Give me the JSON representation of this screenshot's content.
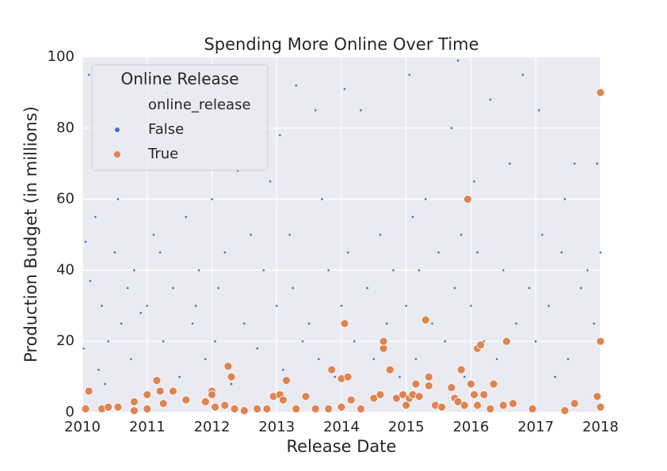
{
  "chart_data": {
    "type": "scatter",
    "title": "Spending More Online Over Time",
    "x_label": "Release Date",
    "y_label": "Production Budget (in millions)",
    "legend_title": "Online Release",
    "legend_subtitle": "online_release",
    "legend": "upper left",
    "xlim": [
      2010,
      2018
    ],
    "xticks": [
      2010,
      2011,
      2012,
      2013,
      2014,
      2015,
      2016,
      2017,
      2018
    ],
    "ylim": [
      0,
      100
    ],
    "yticks": [
      0,
      20,
      40,
      60,
      80,
      100
    ],
    "grid": true,
    "series": [
      {
        "name": "False",
        "color": "#4c72b0",
        "x": [
          2010.02,
          2010.05,
          2010.1,
          2010.12,
          2010.2,
          2010.25,
          2010.3,
          2010.35,
          2010.4,
          2010.5,
          2010.55,
          2010.6,
          2010.7,
          2010.75,
          2010.8,
          2010.9,
          2010.95,
          2011.0,
          2011.05,
          2011.1,
          2011.2,
          2011.25,
          2011.3,
          2011.4,
          2011.5,
          2011.6,
          2011.7,
          2011.75,
          2011.8,
          2011.9,
          2012.0,
          2012.05,
          2012.1,
          2012.2,
          2012.3,
          2012.4,
          2012.5,
          2012.6,
          2012.7,
          2012.8,
          2012.9,
          2013.0,
          2013.05,
          2013.1,
          2013.2,
          2013.25,
          2013.3,
          2013.4,
          2013.5,
          2013.6,
          2013.65,
          2013.7,
          2013.8,
          2013.9,
          2014.0,
          2014.05,
          2014.1,
          2014.2,
          2014.3,
          2014.4,
          2014.5,
          2014.6,
          2014.7,
          2014.8,
          2014.9,
          2015.0,
          2015.05,
          2015.1,
          2015.15,
          2015.2,
          2015.3,
          2015.4,
          2015.5,
          2015.6,
          2015.7,
          2015.75,
          2015.8,
          2015.85,
          2015.9,
          2016.0,
          2016.05,
          2016.1,
          2016.2,
          2016.3,
          2016.4,
          2016.5,
          2016.6,
          2016.7,
          2016.8,
          2016.9,
          2017.0,
          2017.05,
          2017.1,
          2017.2,
          2017.3,
          2017.4,
          2017.45,
          2017.5,
          2017.6,
          2017.7,
          2017.8,
          2017.9,
          2017.95,
          2018.0
        ],
        "values": [
          18,
          48,
          95,
          37,
          55,
          12,
          30,
          8,
          20,
          45,
          60,
          25,
          35,
          15,
          40,
          28,
          5,
          30,
          80,
          50,
          45,
          20,
          90,
          35,
          10,
          55,
          25,
          30,
          40,
          15,
          60,
          20,
          35,
          45,
          8,
          68,
          25,
          50,
          18,
          40,
          65,
          30,
          78,
          12,
          50,
          35,
          92,
          20,
          25,
          85,
          15,
          60,
          40,
          10,
          30,
          91,
          45,
          20,
          85,
          35,
          15,
          50,
          25,
          40,
          10,
          30,
          95,
          55,
          15,
          40,
          60,
          25,
          45,
          20,
          80,
          35,
          99,
          50,
          10,
          30,
          65,
          45,
          20,
          88,
          15,
          40,
          70,
          25,
          95,
          35,
          20,
          85,
          50,
          30,
          10,
          45,
          60,
          15,
          70,
          35,
          40,
          25,
          70,
          45
        ]
      },
      {
        "name": "True",
        "color": "#dd8452",
        "x": [
          2010.1,
          2010.05,
          2010.3,
          2010.4,
          2010.55,
          2010.8,
          2010.8,
          2011.0,
          2011.0,
          2011.15,
          2011.2,
          2011.25,
          2011.4,
          2011.6,
          2011.9,
          2012.0,
          2012.0,
          2012.05,
          2012.2,
          2012.25,
          2012.3,
          2012.35,
          2012.5,
          2012.7,
          2012.85,
          2012.95,
          2013.05,
          2013.1,
          2013.15,
          2013.3,
          2013.45,
          2013.6,
          2013.8,
          2013.85,
          2014.0,
          2014.0,
          2014.05,
          2014.1,
          2014.15,
          2014.3,
          2014.5,
          2014.6,
          2014.65,
          2014.65,
          2014.75,
          2014.85,
          2014.95,
          2015.0,
          2015.05,
          2015.1,
          2015.15,
          2015.2,
          2015.3,
          2015.35,
          2015.35,
          2015.45,
          2015.55,
          2015.7,
          2015.75,
          2015.8,
          2015.85,
          2015.9,
          2015.95,
          2016.0,
          2016.05,
          2016.1,
          2016.1,
          2016.15,
          2016.2,
          2016.3,
          2016.35,
          2016.5,
          2016.55,
          2016.65,
          2016.95,
          2017.45,
          2017.6,
          2017.95,
          2018.0,
          2018.0,
          2018.0
        ],
        "values": [
          6,
          1,
          1,
          1.5,
          1.5,
          3,
          0.5,
          5,
          1,
          9,
          6,
          2.5,
          6,
          3.5,
          3,
          6,
          5,
          1.5,
          2,
          13,
          10,
          1,
          0.5,
          1,
          1,
          4.5,
          5,
          3.5,
          9,
          1,
          4.5,
          1,
          1,
          12,
          1.5,
          9.5,
          25,
          10,
          3.5,
          1,
          4,
          5,
          18,
          20,
          12,
          4,
          5,
          2,
          4,
          5,
          8,
          4.5,
          26,
          7.5,
          10,
          2,
          1.5,
          7,
          4,
          3,
          12,
          2,
          60,
          8,
          5,
          2,
          18,
          19,
          5,
          1,
          8,
          2,
          20,
          2.5,
          1,
          0.5,
          2.5,
          4.5,
          90,
          20,
          1.5
        ]
      }
    ]
  }
}
